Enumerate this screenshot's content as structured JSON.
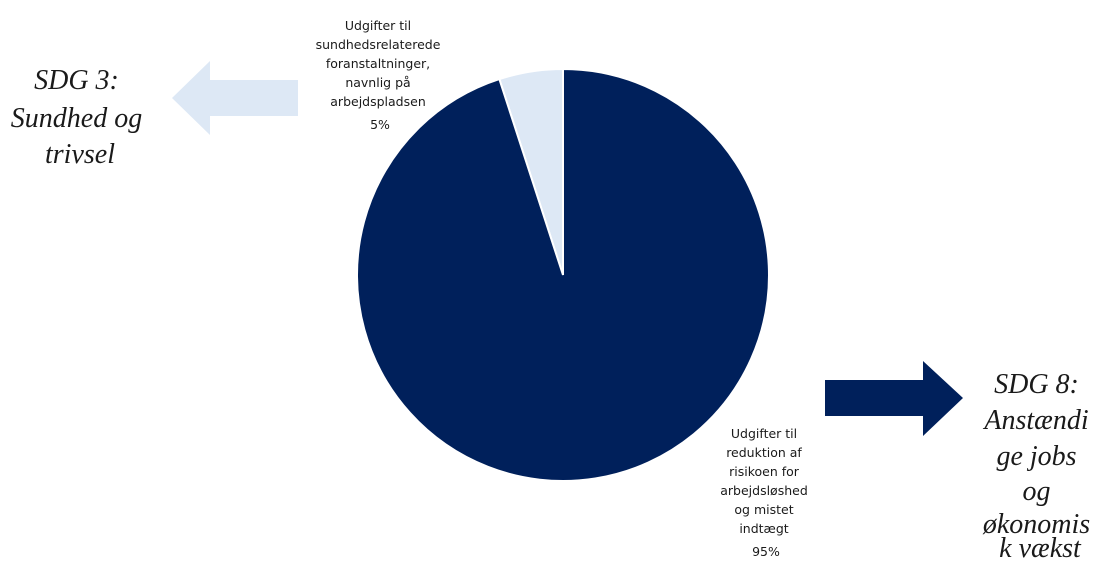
{
  "chart_data": {
    "type": "pie",
    "title": "",
    "slices": [
      {
        "label_lines": [
          "Udgifter til",
          "sundhedsrelaterede",
          "foranstaltninger,",
          "navnlig på",
          "arbejdspladsen"
        ],
        "value": 5,
        "value_label": "5%",
        "color": "#dde8f5"
      },
      {
        "label_lines": [
          "Udgifter til",
          "reduktion af",
          "risikoen for",
          "arbejdsløshed",
          "og mistet",
          "indtægt"
        ],
        "value": 95,
        "value_label": "95%",
        "color": "#00205b"
      }
    ],
    "legend": "none"
  },
  "annotations": [
    {
      "text_lines": [
        "SDG 3:",
        "Sundhed og",
        "trivsel"
      ],
      "arrow_direction": "left",
      "arrow_color": "#dde8f5",
      "linked_slice": 0
    },
    {
      "text_lines": [
        "SDG 8:",
        "Anstændi",
        "ge jobs",
        "og",
        "økonomis",
        "k vækst"
      ],
      "arrow_direction": "right",
      "arrow_color": "#00205b",
      "linked_slice": 1
    }
  ]
}
